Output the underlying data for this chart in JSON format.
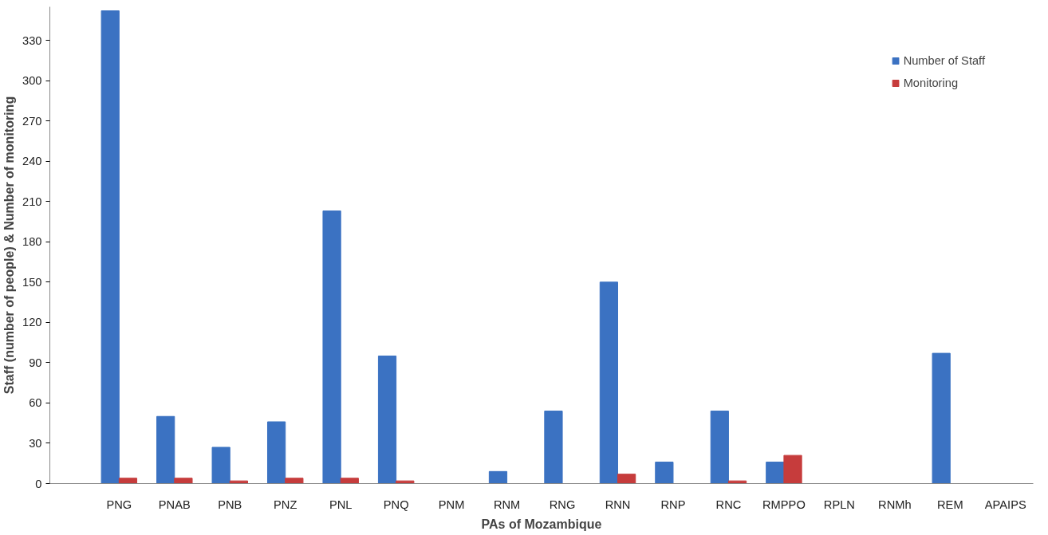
{
  "chart_data": {
    "type": "bar",
    "xlabel": "PAs of Mozambique",
    "ylabel": "Staff (number of people) & Number of monitoring",
    "categories": [
      "PNG",
      "PNAB",
      "PNB",
      "PNZ",
      "PNL",
      "PNQ",
      "PNM",
      "RNM",
      "RNG",
      "RNN",
      "RNP",
      "RNC",
      "RMPPO",
      "RPLN",
      "RNMh",
      "REM",
      "APAIPS"
    ],
    "series": [
      {
        "name": "Number of Staff",
        "color": "#3b72c2",
        "values": [
          352,
          50,
          27,
          46,
          203,
          95,
          null,
          9,
          54,
          150,
          16,
          54,
          16,
          null,
          null,
          97,
          null
        ]
      },
      {
        "name": "Monitoring",
        "color": "#c63c3c",
        "values": [
          4,
          4,
          2,
          4,
          4,
          2,
          null,
          null,
          null,
          7,
          null,
          2,
          21,
          null,
          null,
          null,
          null
        ]
      }
    ],
    "ylim": [
      0,
      355
    ],
    "yticks": [
      0,
      30,
      60,
      90,
      120,
      150,
      180,
      210,
      240,
      270,
      300,
      330
    ],
    "grid": false,
    "legend": "top right"
  }
}
